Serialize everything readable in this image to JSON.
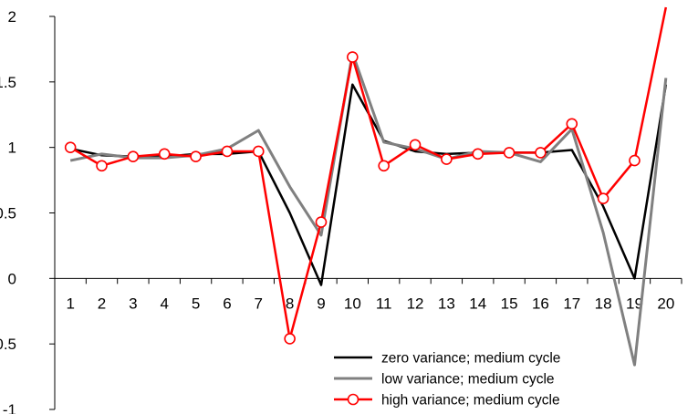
{
  "chart_data": {
    "type": "line",
    "title": "",
    "xlabel": "",
    "ylabel": "",
    "categories": [
      "1",
      "2",
      "3",
      "4",
      "5",
      "6",
      "7",
      "8",
      "9",
      "10",
      "11",
      "12",
      "13",
      "14",
      "15",
      "16",
      "17",
      "18",
      "19",
      "20"
    ],
    "ylim": [
      -1,
      2
    ],
    "yticks": [
      -1,
      -0.5,
      0,
      0.5,
      1,
      1.5,
      2
    ],
    "ytick_labels": [
      "-1",
      "-0.5",
      "0",
      "0.5",
      "1",
      "1.5",
      "2"
    ],
    "grid": false,
    "legend_position": "bottom-right",
    "series": [
      {
        "name": "zero variance; medium cycle",
        "color": "#000000",
        "marker": "none",
        "values": [
          0.99,
          0.94,
          0.93,
          0.93,
          0.95,
          0.95,
          0.97,
          0.5,
          -0.05,
          1.48,
          1.05,
          0.97,
          0.95,
          0.96,
          0.96,
          0.96,
          0.98,
          0.55,
          0.0,
          1.48
        ]
      },
      {
        "name": "low variance; medium cycle",
        "color": "#808080",
        "marker": "none",
        "values": [
          0.9,
          0.95,
          0.92,
          0.92,
          0.94,
          0.99,
          1.13,
          0.7,
          0.33,
          1.72,
          1.04,
          0.99,
          0.91,
          0.97,
          0.96,
          0.89,
          1.14,
          0.35,
          -0.66,
          1.53
        ]
      },
      {
        "name": "high variance; medium cycle",
        "color": "#ff0000",
        "marker": "open-circle",
        "values": [
          1.0,
          0.86,
          0.93,
          0.95,
          0.93,
          0.97,
          0.97,
          -0.46,
          0.43,
          1.69,
          0.86,
          1.02,
          0.91,
          0.95,
          0.96,
          0.96,
          1.18,
          0.61,
          0.9,
          2.1
        ]
      }
    ]
  }
}
